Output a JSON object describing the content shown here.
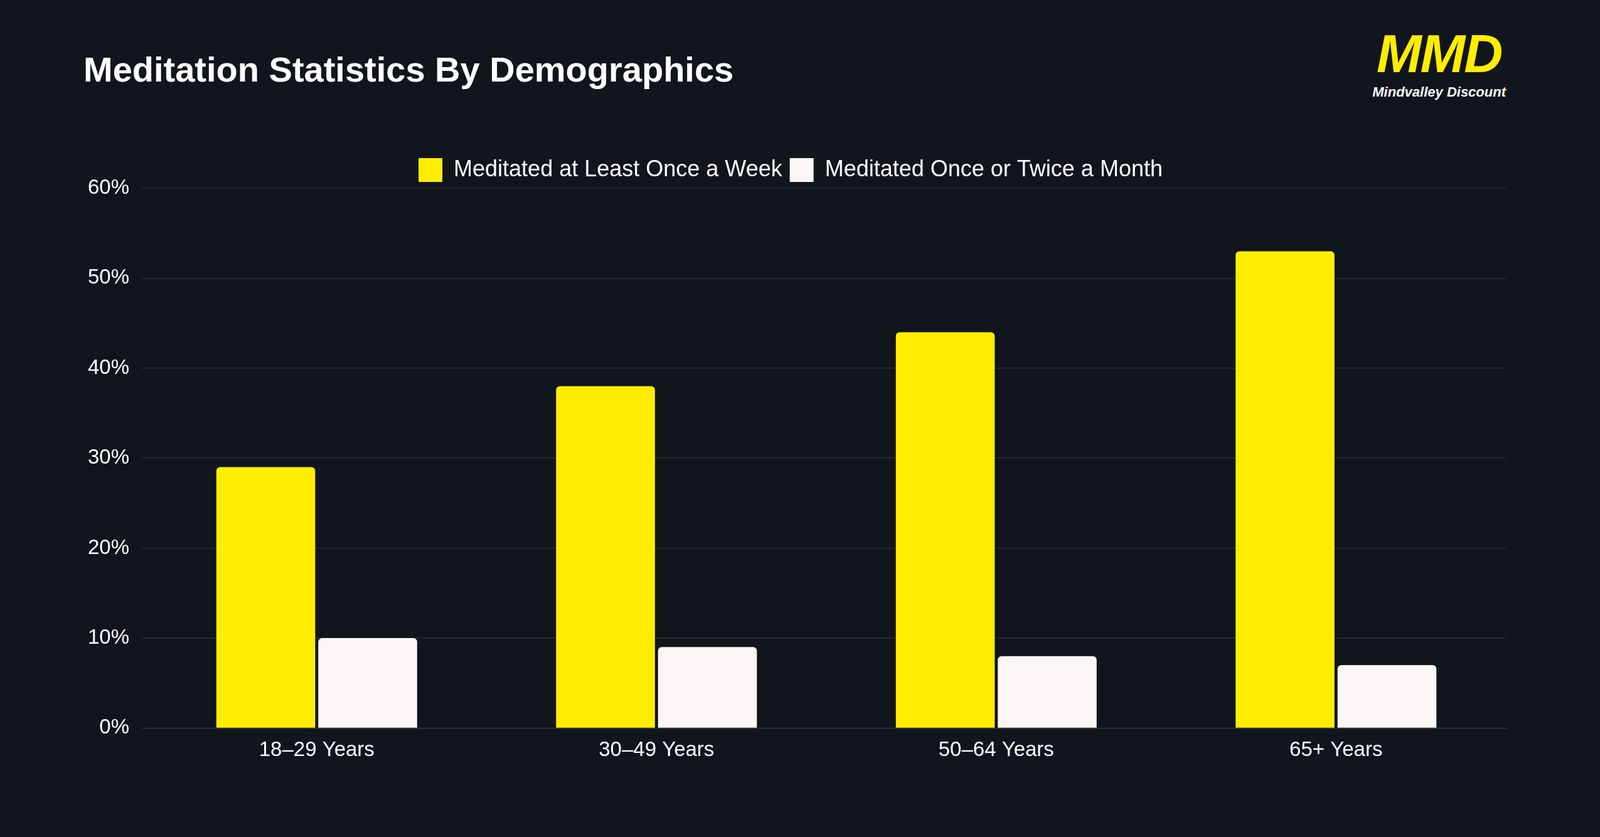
{
  "chart_data": {
    "type": "bar",
    "title": "Meditation Statistics By Demographics",
    "annotations": [
      "MMD",
      "Mindvalley Discount"
    ],
    "categories": [
      "18–29 Years",
      "30–49 Years",
      "50–64 Years",
      "65+ Years"
    ],
    "series": [
      {
        "name": "Meditated at Least Once a Week",
        "color": "#ffed00",
        "values": [
          29,
          38,
          44,
          53
        ]
      },
      {
        "name": "Meditated Once or Twice a Month",
        "color": "#fcf6f6",
        "values": [
          10,
          9,
          8,
          7
        ]
      }
    ],
    "ylim": [
      0,
      60
    ],
    "yticks": [
      {
        "value": 0,
        "label": "0%"
      },
      {
        "value": 10,
        "label": "10%"
      },
      {
        "value": 20,
        "label": "20%"
      },
      {
        "value": 30,
        "label": "30%"
      },
      {
        "value": 40,
        "label": "40%"
      },
      {
        "value": 50,
        "label": "50%"
      },
      {
        "value": 60,
        "label": "60%"
      }
    ],
    "grid": true,
    "legend": "top"
  }
}
